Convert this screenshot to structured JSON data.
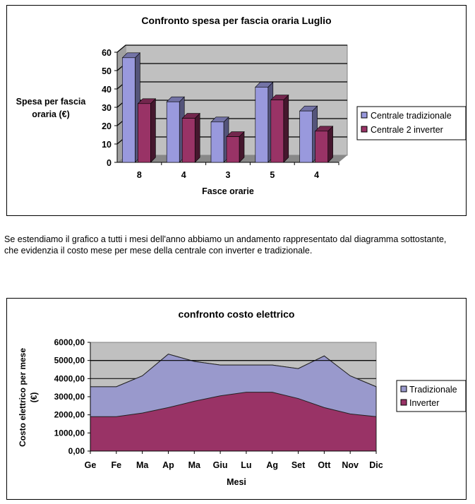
{
  "paragraph": "Se estendiamo il grafico a tutti i mesi dell'anno abbiamo un andamento rappresentato dal diagramma sottostante, che evidenzia il costo mese per mese della centrale con inverter e tradizionale.",
  "chart_data": [
    {
      "type": "bar",
      "title": "Confronto spesa per fascia oraria Luglio",
      "xlabel": "Fasce orarie",
      "ylabel": "Spesa per fascia oraria (€)",
      "categories": [
        "8",
        "4",
        "3",
        "5",
        "4"
      ],
      "ylim": [
        0,
        60
      ],
      "yticks": [
        "0",
        "10",
        "20",
        "30",
        "40",
        "50",
        "60"
      ],
      "grid": true,
      "three_d": true,
      "legend_position": "right",
      "series": [
        {
          "name": "Centrale tradizionale",
          "values": [
            57,
            33,
            22,
            41,
            28
          ],
          "color": "#9999dd"
        },
        {
          "name": "Centrale 2 inverter",
          "values": [
            32,
            24,
            14,
            34,
            17
          ],
          "color": "#993366"
        }
      ]
    },
    {
      "type": "area",
      "title": "confronto costo elettrico",
      "xlabel": "Mesi",
      "ylabel": "Costo elettrico per mese (€)",
      "categories": [
        "Ge",
        "Fe",
        "Ma",
        "Ap",
        "Ma",
        "Giu",
        "Lu",
        "Ag",
        "Set",
        "Ott",
        "Nov",
        "Dic"
      ],
      "ylim": [
        0,
        6000
      ],
      "yticks": [
        "0,00",
        "1000,00",
        "2000,00",
        "3000,00",
        "4000,00",
        "5000,00",
        "6000,00"
      ],
      "grid": true,
      "legend_position": "right",
      "series": [
        {
          "name": "Tradizionale",
          "values": [
            3550,
            3550,
            4150,
            5350,
            4950,
            4750,
            4750,
            4750,
            4550,
            5250,
            4150,
            3550
          ],
          "color": "#9999cc"
        },
        {
          "name": "Inverter",
          "values": [
            1900,
            1900,
            2100,
            2400,
            2750,
            3050,
            3250,
            3250,
            2900,
            2400,
            2050,
            1900
          ],
          "color": "#993366"
        }
      ]
    }
  ]
}
